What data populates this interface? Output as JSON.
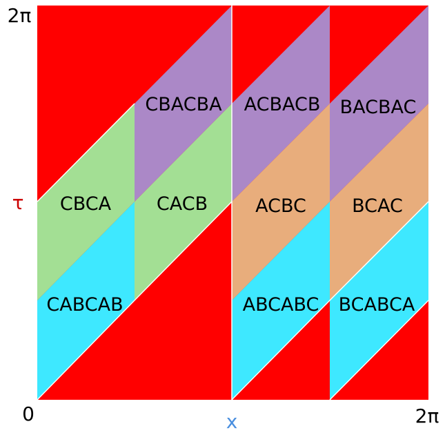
{
  "axes": {
    "x_label": "x",
    "y_label": "τ",
    "x_min_label": "0",
    "x_max_label": "2π",
    "y_max_label": "2π"
  },
  "colors": {
    "red": "#ff0000",
    "cyan": "#3ee8ff",
    "green": "#a3df94",
    "purple": "#ab88c7",
    "orange": "#e8ad7c",
    "x_label": "#4a8fdf",
    "y_label": "#cc0000"
  },
  "regions": [
    {
      "label": "CABCAB",
      "color": "cyan"
    },
    {
      "label": "CBCA",
      "color": "green"
    },
    {
      "label": "CACB",
      "color": "green"
    },
    {
      "label": "CBACBA",
      "color": "purple"
    },
    {
      "label": "ACBACB",
      "color": "purple"
    },
    {
      "label": "BACBAC",
      "color": "purple"
    },
    {
      "label": "ACBC",
      "color": "orange"
    },
    {
      "label": "BCAC",
      "color": "orange"
    },
    {
      "label": "ABCABC",
      "color": "cyan"
    },
    {
      "label": "BCABCA",
      "color": "cyan"
    }
  ]
}
